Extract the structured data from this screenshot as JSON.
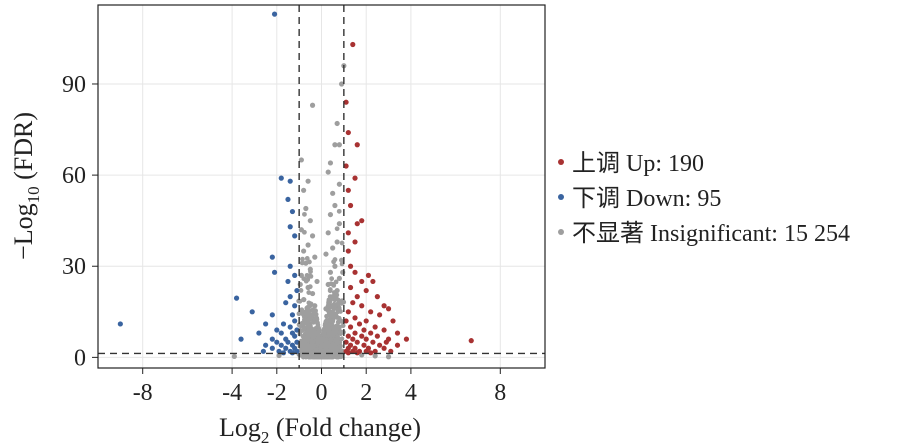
{
  "chart_data": {
    "type": "scatter",
    "title": "",
    "xlabel": "Log2 (Fold change)",
    "xlabel_parts": {
      "pre": "Log",
      "sub": "2",
      "post": " (Fold change)"
    },
    "ylabel": "−Log10 (FDR)",
    "ylabel_parts": {
      "pre": "−Log",
      "sub": "10",
      "post": " (FDR)"
    },
    "xlim": [
      -10,
      10
    ],
    "ylim": [
      -3.5,
      116
    ],
    "xticks": [
      -8,
      -4,
      -2,
      0,
      2,
      4,
      8
    ],
    "xtick_labels": [
      "-8",
      "-4",
      "-2",
      "0",
      "2",
      "4",
      "8"
    ],
    "yticks": [
      0,
      30,
      60,
      90
    ],
    "ytick_labels": [
      "0",
      "30",
      "60",
      "90"
    ],
    "grid": true,
    "legend_position": "right",
    "thresholds": {
      "log2fc": [
        -1,
        1
      ],
      "neg_log10_fdr": 1.3
    },
    "colors": {
      "up": "#a83232",
      "down": "#3a64a0",
      "insignificant": "#9e9e9e",
      "threshold_line": "#333333"
    },
    "series": [
      {
        "name": "上调 Up: 190",
        "key": "up",
        "points": [
          [
            1.4,
            103
          ],
          [
            1.1,
            84
          ],
          [
            1.2,
            74
          ],
          [
            1.6,
            70
          ],
          [
            1.1,
            63
          ],
          [
            1.5,
            59
          ],
          [
            1.2,
            55
          ],
          [
            1.3,
            50
          ],
          [
            1.6,
            44
          ],
          [
            1.8,
            45
          ],
          [
            1.2,
            41
          ],
          [
            1.5,
            38
          ],
          [
            1.2,
            35
          ],
          [
            1.3,
            30
          ],
          [
            1.5,
            28
          ],
          [
            2.1,
            27
          ],
          [
            1.8,
            25
          ],
          [
            2.3,
            25
          ],
          [
            2.0,
            22
          ],
          [
            1.3,
            23
          ],
          [
            1.6,
            20
          ],
          [
            2.5,
            20
          ],
          [
            2.8,
            17
          ],
          [
            3.0,
            16
          ],
          [
            1.4,
            18
          ],
          [
            1.8,
            17
          ],
          [
            2.2,
            15
          ],
          [
            1.2,
            15
          ],
          [
            2.6,
            14
          ],
          [
            1.5,
            13
          ],
          [
            2.0,
            12
          ],
          [
            3.2,
            12
          ],
          [
            1.1,
            12
          ],
          [
            1.7,
            11
          ],
          [
            2.4,
            10
          ],
          [
            1.3,
            10
          ],
          [
            1.9,
            9
          ],
          [
            2.8,
            9
          ],
          [
            1.5,
            8
          ],
          [
            2.2,
            8
          ],
          [
            3.4,
            8
          ],
          [
            1.2,
            7
          ],
          [
            1.8,
            7
          ],
          [
            2.5,
            7
          ],
          [
            1.4,
            6
          ],
          [
            2.0,
            6
          ],
          [
            3.0,
            6
          ],
          [
            3.8,
            6
          ],
          [
            1.1,
            5
          ],
          [
            1.6,
            5
          ],
          [
            2.3,
            5
          ],
          [
            2.9,
            5
          ],
          [
            6.7,
            5.5
          ],
          [
            1.3,
            4
          ],
          [
            1.9,
            4
          ],
          [
            2.6,
            4
          ],
          [
            3.4,
            4
          ],
          [
            1.2,
            3
          ],
          [
            1.5,
            3
          ],
          [
            2.1,
            3
          ],
          [
            2.8,
            3
          ],
          [
            1.1,
            2
          ],
          [
            1.4,
            2
          ],
          [
            1.7,
            2
          ],
          [
            2.0,
            2
          ],
          [
            2.4,
            2
          ],
          [
            3.1,
            2
          ],
          [
            1.2,
            1.5
          ],
          [
            1.6,
            1.5
          ],
          [
            2.2,
            1.5
          ]
        ]
      },
      {
        "name": "下调 Down: 95",
        "key": "down",
        "points": [
          [
            -2.1,
            113
          ],
          [
            -1.8,
            59
          ],
          [
            -1.4,
            58
          ],
          [
            -1.5,
            52
          ],
          [
            -1.3,
            48
          ],
          [
            -1.4,
            43
          ],
          [
            -1.2,
            40
          ],
          [
            -2.2,
            33
          ],
          [
            -1.4,
            30
          ],
          [
            -2.1,
            28
          ],
          [
            -1.2,
            27
          ],
          [
            -1.5,
            25
          ],
          [
            -1.1,
            22
          ],
          [
            -1.4,
            20
          ],
          [
            -3.8,
            19.5
          ],
          [
            -1.6,
            18
          ],
          [
            -1.2,
            17
          ],
          [
            -3.1,
            15
          ],
          [
            -1.3,
            14
          ],
          [
            -2.2,
            14
          ],
          [
            -9.0,
            11
          ],
          [
            -1.2,
            12
          ],
          [
            -1.7,
            11
          ],
          [
            -2.5,
            11
          ],
          [
            -1.4,
            10
          ],
          [
            -1.1,
            9
          ],
          [
            -2.0,
            9
          ],
          [
            -1.3,
            8
          ],
          [
            -1.8,
            8
          ],
          [
            -2.8,
            8
          ],
          [
            -1.2,
            7
          ],
          [
            -1.6,
            6
          ],
          [
            -2.2,
            6
          ],
          [
            -3.6,
            6
          ],
          [
            -1.1,
            5
          ],
          [
            -1.5,
            5
          ],
          [
            -2.0,
            5
          ],
          [
            -1.3,
            4
          ],
          [
            -1.8,
            4
          ],
          [
            -2.5,
            4
          ],
          [
            -1.2,
            3
          ],
          [
            -1.6,
            3
          ],
          [
            -2.2,
            3
          ],
          [
            -1.1,
            2
          ],
          [
            -1.4,
            2
          ],
          [
            -1.9,
            2
          ],
          [
            -2.6,
            2
          ],
          [
            -1.3,
            1.5
          ],
          [
            -1.7,
            1.5
          ]
        ]
      },
      {
        "name": "不显著 Insignificant: 15 254",
        "key": "insignificant",
        "points": [
          [
            1.0,
            96
          ],
          [
            0.9,
            90
          ],
          [
            -0.4,
            83
          ],
          [
            0.7,
            77
          ],
          [
            0.6,
            70
          ],
          [
            0.4,
            64
          ],
          [
            0.3,
            61
          ],
          [
            0.8,
            57
          ],
          [
            -0.6,
            58
          ],
          [
            0.5,
            54
          ],
          [
            -0.8,
            55
          ],
          [
            0.6,
            50
          ],
          [
            -0.7,
            49
          ],
          [
            0.4,
            47
          ],
          [
            -0.5,
            45
          ],
          [
            0.8,
            44
          ],
          [
            -0.9,
            42
          ],
          [
            0.3,
            41
          ],
          [
            -0.4,
            40
          ],
          [
            0.7,
            38
          ],
          [
            -0.6,
            37
          ],
          [
            0.5,
            36
          ],
          [
            -0.8,
            35
          ],
          [
            0.2,
            34
          ],
          [
            -0.3,
            33
          ],
          [
            0.9,
            32
          ],
          [
            -0.7,
            31
          ],
          [
            0.6,
            30
          ],
          [
            -0.5,
            29
          ],
          [
            0.4,
            28
          ],
          [
            -0.9,
            27
          ],
          [
            0.8,
            26
          ],
          [
            -0.2,
            25
          ],
          [
            0.3,
            24
          ],
          [
            -0.6,
            23
          ],
          [
            0.7,
            22
          ],
          [
            -0.4,
            21
          ],
          [
            0.5,
            20
          ],
          [
            -0.8,
            19
          ],
          [
            0.9,
            18
          ],
          [
            -0.3,
            17
          ],
          [
            0.2,
            16
          ],
          [
            -0.7,
            15
          ],
          [
            0.6,
            14
          ],
          [
            -0.5,
            13
          ],
          [
            0.4,
            12
          ],
          [
            -0.9,
            11
          ],
          [
            0.8,
            10
          ],
          [
            -0.1,
            9
          ],
          [
            0.1,
            8
          ],
          [
            -0.6,
            7
          ],
          [
            0.7,
            6
          ],
          [
            -0.4,
            5
          ],
          [
            0.5,
            4
          ],
          [
            -0.8,
            3
          ],
          [
            0.3,
            2
          ],
          [
            -0.2,
            1
          ],
          [
            0.0,
            0.5
          ],
          [
            0.9,
            1.2
          ],
          [
            -1.0,
            1.0
          ],
          [
            1.8,
            0.8
          ],
          [
            -1.9,
            0.6
          ],
          [
            2.4,
            0.5
          ],
          [
            -3.9,
            0.3
          ],
          [
            3.0,
            0.2
          ],
          [
            0.8,
            70
          ],
          [
            -0.9,
            65
          ],
          [
            0.95,
            28
          ],
          [
            -0.95,
            24
          ]
        ]
      }
    ]
  }
}
